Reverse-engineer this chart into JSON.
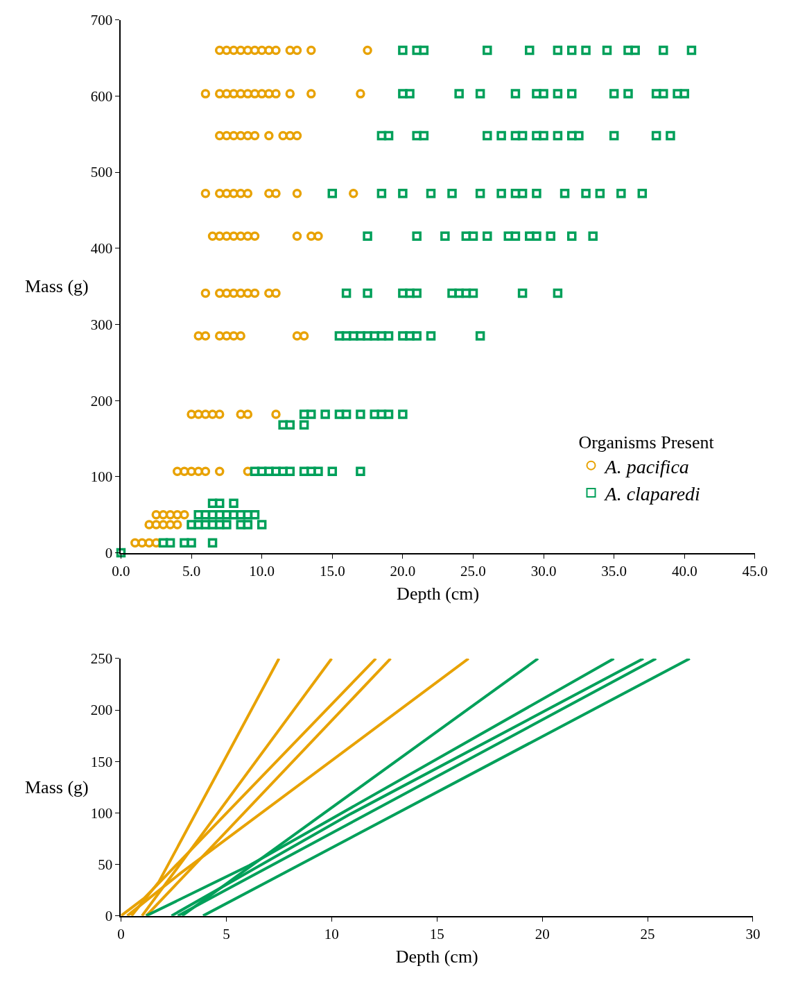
{
  "chart_data": [
    {
      "type": "scatter",
      "xlabel": "Depth (cm)",
      "ylabel": "Mass (g)",
      "legend_title": "Organisms Present",
      "legend": "bottom right",
      "xlim": [
        0,
        45
      ],
      "xticks": [
        {
          "value": 0,
          "label": "0.0"
        },
        {
          "value": 5,
          "label": "5.0"
        },
        {
          "value": 10,
          "label": "10.0"
        },
        {
          "value": 15,
          "label": "15.0"
        },
        {
          "value": 20,
          "label": "20.0"
        },
        {
          "value": 25,
          "label": "25.0"
        },
        {
          "value": 30,
          "label": "30.0"
        },
        {
          "value": 35,
          "label": "35.0"
        },
        {
          "value": 40,
          "label": "40.0"
        },
        {
          "value": 45,
          "label": "45.0"
        }
      ],
      "ylim": [
        0,
        700
      ],
      "yticks": [
        0,
        100,
        200,
        300,
        400,
        500,
        600,
        700
      ],
      "series": [
        {
          "name": "A. pacifica",
          "color": "#e8a202",
          "marker": "circle",
          "x": [
            7.0,
            7.5,
            8.0,
            8.5,
            9.0,
            9.5,
            10.0,
            10.5,
            11.0,
            12.0,
            12.5,
            13.5,
            17.5,
            6.0,
            7.0,
            7.5,
            8.0,
            8.5,
            9.0,
            9.5,
            10.0,
            10.5,
            11.0,
            12.0,
            13.5,
            17.0,
            7.0,
            7.5,
            8.0,
            8.5,
            9.0,
            9.5,
            10.5,
            11.5,
            12.0,
            12.5,
            6.0,
            7.0,
            7.5,
            8.0,
            8.5,
            9.0,
            10.5,
            11.0,
            12.5,
            16.5,
            6.5,
            7.0,
            7.5,
            8.0,
            8.5,
            9.0,
            9.5,
            12.5,
            13.5,
            14.0,
            6.0,
            7.0,
            7.5,
            8.0,
            8.5,
            9.0,
            9.5,
            10.5,
            11.0,
            5.5,
            6.0,
            7.0,
            7.5,
            8.0,
            8.5,
            12.5,
            13.0,
            5.0,
            5.5,
            6.0,
            6.5,
            7.0,
            8.5,
            9.0,
            11.0,
            4.0,
            4.5,
            5.0,
            5.5,
            6.0,
            7.0,
            9.0,
            2.5,
            3.0,
            3.5,
            4.0,
            4.5,
            2.0,
            2.5,
            3.0,
            3.5,
            4.0,
            1.0,
            1.5,
            2.0,
            2.5
          ],
          "values": [
            660,
            660,
            660,
            660,
            660,
            660,
            660,
            660,
            660,
            660,
            660,
            660,
            660,
            603,
            603,
            603,
            603,
            603,
            603,
            603,
            603,
            603,
            603,
            603,
            603,
            603,
            548,
            548,
            548,
            548,
            548,
            548,
            548,
            548,
            548,
            548,
            472,
            472,
            472,
            472,
            472,
            472,
            472,
            472,
            472,
            472,
            416,
            416,
            416,
            416,
            416,
            416,
            416,
            416,
            416,
            416,
            341,
            341,
            341,
            341,
            341,
            341,
            341,
            341,
            341,
            285,
            285,
            285,
            285,
            285,
            285,
            285,
            285,
            182,
            182,
            182,
            182,
            182,
            182,
            182,
            182,
            107,
            107,
            107,
            107,
            107,
            107,
            107,
            50,
            50,
            50,
            50,
            50,
            37,
            37,
            37,
            37,
            37,
            13,
            13,
            13,
            13
          ]
        },
        {
          "name": "A. claparedi",
          "color": "#00a05a",
          "marker": "square",
          "x": [
            20.0,
            21.0,
            21.5,
            26.0,
            29.0,
            31.0,
            32.0,
            33.0,
            34.5,
            36.0,
            36.5,
            38.5,
            40.5,
            20.0,
            20.5,
            24.0,
            25.5,
            28.0,
            29.5,
            30.0,
            31.0,
            32.0,
            35.0,
            36.0,
            38.0,
            38.5,
            39.5,
            40.0,
            18.5,
            19.0,
            21.0,
            21.5,
            26.0,
            27.0,
            28.0,
            28.5,
            29.5,
            30.0,
            31.0,
            32.0,
            32.5,
            35.0,
            38.0,
            39.0,
            15.0,
            18.5,
            20.0,
            22.0,
            23.5,
            25.5,
            27.0,
            28.0,
            28.5,
            29.5,
            31.5,
            33.0,
            34.0,
            35.5,
            37.0,
            17.5,
            21.0,
            23.0,
            24.5,
            25.0,
            26.0,
            27.5,
            28.0,
            29.0,
            29.5,
            30.5,
            32.0,
            33.5,
            16.0,
            17.5,
            20.0,
            20.5,
            21.0,
            23.5,
            24.0,
            24.5,
            25.0,
            28.5,
            31.0,
            15.5,
            16.0,
            16.5,
            17.0,
            17.5,
            18.0,
            18.5,
            19.0,
            20.0,
            20.5,
            21.0,
            22.0,
            25.5,
            13.0,
            13.5,
            14.5,
            15.5,
            16.0,
            17.0,
            18.0,
            18.5,
            19.0,
            20.0,
            11.5,
            12.0,
            13.0,
            9.5,
            10.0,
            10.5,
            11.0,
            11.5,
            12.0,
            13.0,
            13.5,
            14.0,
            15.0,
            17.0,
            6.5,
            7.0,
            8.0,
            5.5,
            6.0,
            6.5,
            7.0,
            7.5,
            8.0,
            8.5,
            9.0,
            9.5,
            5.0,
            5.5,
            6.0,
            6.5,
            7.0,
            7.5,
            8.5,
            9.0,
            10.0,
            3.0,
            3.5,
            4.5,
            5.0,
            6.5,
            0.0
          ],
          "values": [
            660,
            660,
            660,
            660,
            660,
            660,
            660,
            660,
            660,
            660,
            660,
            660,
            660,
            603,
            603,
            603,
            603,
            603,
            603,
            603,
            603,
            603,
            603,
            603,
            603,
            603,
            603,
            603,
            548,
            548,
            548,
            548,
            548,
            548,
            548,
            548,
            548,
            548,
            548,
            548,
            548,
            548,
            548,
            548,
            472,
            472,
            472,
            472,
            472,
            472,
            472,
            472,
            472,
            472,
            472,
            472,
            472,
            472,
            472,
            416,
            416,
            416,
            416,
            416,
            416,
            416,
            416,
            416,
            416,
            416,
            416,
            416,
            341,
            341,
            341,
            341,
            341,
            341,
            341,
            341,
            341,
            341,
            341,
            285,
            285,
            285,
            285,
            285,
            285,
            285,
            285,
            285,
            285,
            285,
            285,
            285,
            182,
            182,
            182,
            182,
            182,
            182,
            182,
            182,
            182,
            182,
            168,
            168,
            168,
            107,
            107,
            107,
            107,
            107,
            107,
            107,
            107,
            107,
            107,
            107,
            65,
            65,
            65,
            50,
            50,
            50,
            50,
            50,
            50,
            50,
            50,
            50,
            37,
            37,
            37,
            37,
            37,
            37,
            37,
            37,
            37,
            13,
            13,
            13,
            13,
            13,
            0
          ]
        }
      ]
    },
    {
      "type": "line",
      "xlabel": "Depth (cm)",
      "ylabel": "Mass (g)",
      "legend": false,
      "xlim": [
        0,
        30
      ],
      "xticks": [
        0,
        5,
        10,
        15,
        20,
        25,
        30
      ],
      "ylim": [
        0,
        250
      ],
      "yticks": [
        0,
        50,
        100,
        150,
        200,
        250
      ],
      "series": [
        {
          "color": "#e8a202",
          "x": [
            0.5,
            1.8,
            7.5
          ],
          "values": [
            0,
            33,
            250
          ]
        },
        {
          "color": "#e8a202",
          "x": [
            1.0,
            10.0
          ],
          "values": [
            0,
            250
          ]
        },
        {
          "color": "#e8a202",
          "x": [
            0.0,
            1.1,
            12.1
          ],
          "values": [
            0,
            17,
            250
          ]
        },
        {
          "color": "#e8a202",
          "x": [
            1.2,
            12.8
          ],
          "values": [
            0,
            250
          ]
        },
        {
          "color": "#e8a202",
          "x": [
            0.3,
            2.8,
            16.5
          ],
          "values": [
            0,
            41,
            250
          ]
        },
        {
          "color": "#00a05a",
          "x": [
            2.9,
            19.8
          ],
          "values": [
            0,
            250
          ]
        },
        {
          "color": "#00a05a",
          "x": [
            1.2,
            6.1,
            23.4
          ],
          "values": [
            0,
            49,
            250
          ]
        },
        {
          "color": "#00a05a",
          "x": [
            2.4,
            10.9,
            24.8
          ],
          "values": [
            0,
            99,
            250
          ]
        },
        {
          "color": "#00a05a",
          "x": [
            2.7,
            25.4
          ],
          "values": [
            0,
            250
          ]
        },
        {
          "color": "#00a05a",
          "x": [
            3.9,
            27.0
          ],
          "values": [
            0,
            250
          ]
        }
      ]
    }
  ]
}
